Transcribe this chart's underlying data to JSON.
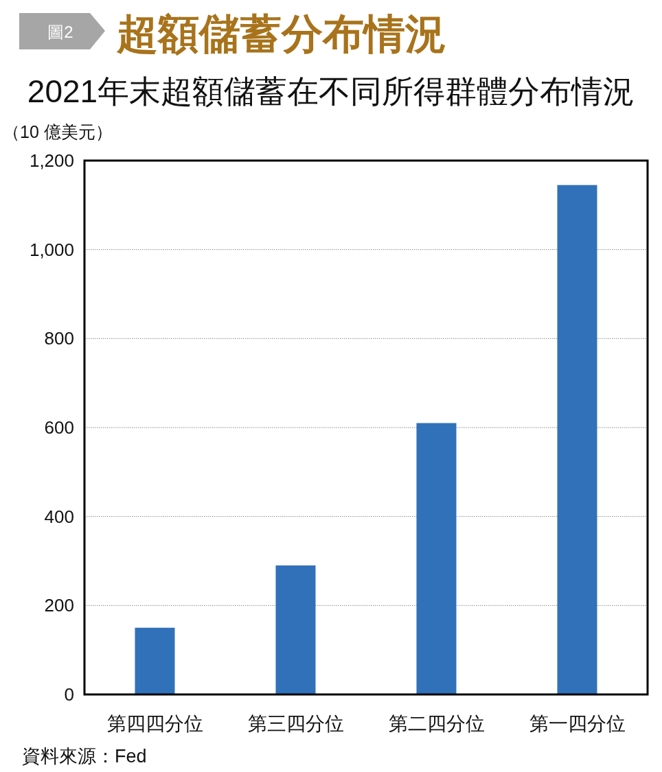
{
  "chart_data": {
    "type": "bar",
    "title": "超額儲蓄分布情況",
    "subtitle": "2021年末超額儲蓄在不同所得群體分布情況",
    "ylabel": "（10 億美元）",
    "categories": [
      "第四四分位",
      "第三四分位",
      "第二四分位",
      "第一四分位"
    ],
    "values": [
      150,
      290,
      610,
      1145
    ],
    "color": "#3171b9",
    "ylim": [
      0,
      1200
    ],
    "yticks": [
      0,
      200,
      400,
      600,
      800,
      {
        "value": 1000,
        "label": "1,000"
      },
      {
        "value": 1200,
        "label": "1,200"
      }
    ],
    "grid": "y",
    "annotations": [
      "圖2",
      "資料來源：Fed"
    ]
  }
}
